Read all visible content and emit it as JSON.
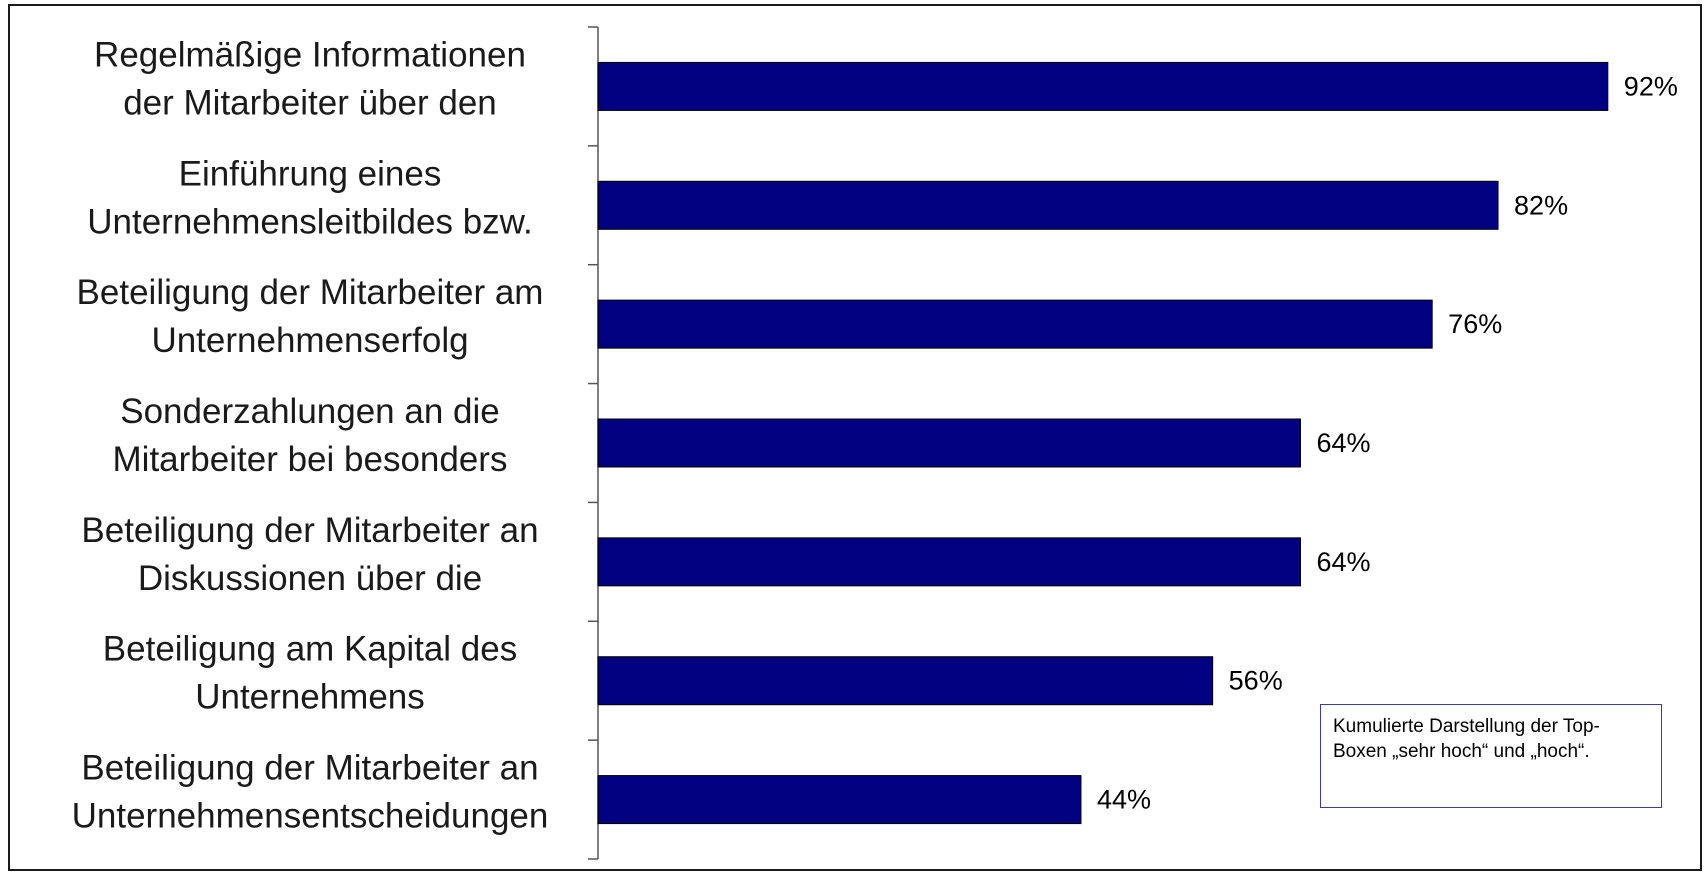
{
  "chart_data": {
    "type": "bar",
    "orientation": "horizontal",
    "categories": [
      [
        "Regelmäßige Informationen",
        "der Mitarbeiter über den"
      ],
      [
        "Einführung eines",
        "Unternehmensleitbildes bzw."
      ],
      [
        "Beteiligung der Mitarbeiter am",
        "Unternehmenserfolg"
      ],
      [
        "Sonderzahlungen an die",
        "Mitarbeiter bei besonders"
      ],
      [
        "Beteiligung der Mitarbeiter an",
        "Diskussionen über die"
      ],
      [
        "Beteiligung am Kapital des",
        "Unternehmens"
      ],
      [
        "Beteiligung der Mitarbeiter an",
        "Unternehmensentscheidungen"
      ]
    ],
    "values": [
      92,
      82,
      76,
      64,
      64,
      56,
      44
    ],
    "value_labels": [
      "92%",
      "82%",
      "76%",
      "64%",
      "64%",
      "56%",
      "44%"
    ],
    "xlim": [
      0,
      100
    ],
    "bar_color": "#000080",
    "grid": false,
    "note": "Kumulierte Darstellung der Top-Boxen „sehr hoch“ und „hoch“."
  }
}
